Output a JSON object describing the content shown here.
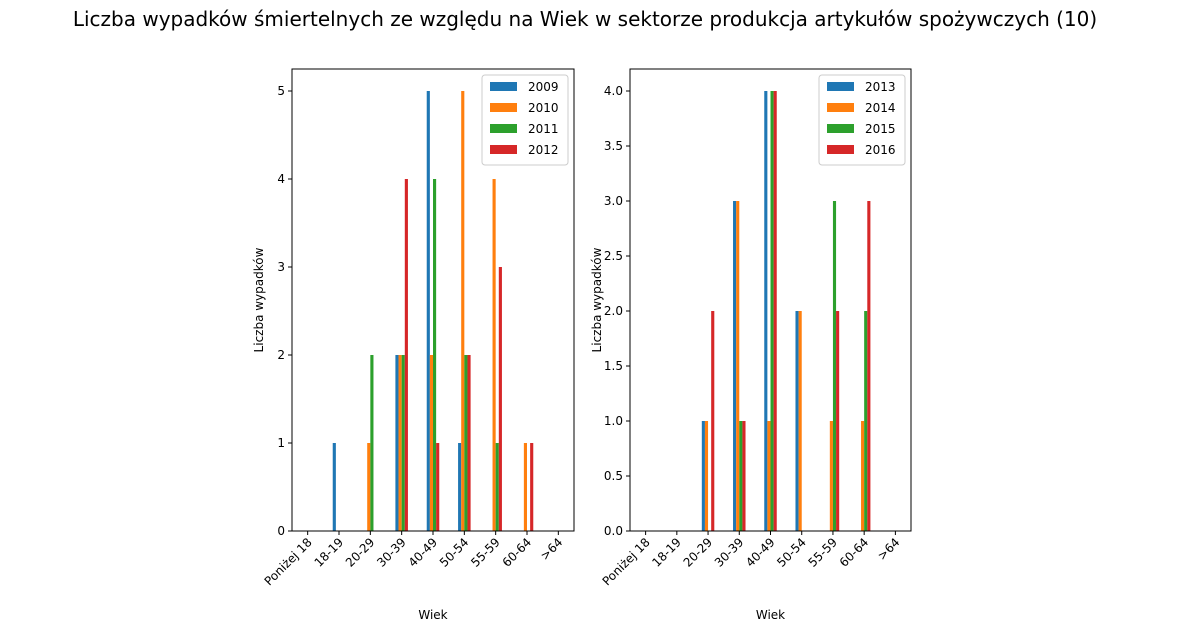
{
  "title": "Liczba wypadków śmiertelnych ze względu na Wiek w sektorze produkcja artykułów spożywczych  (10)",
  "chart_data": [
    {
      "type": "bar",
      "categories": [
        "Poniżej 18",
        "18-19",
        "20-29",
        "30-39",
        "40-49",
        "50-54",
        "55-59",
        "60-64",
        ">64"
      ],
      "series": [
        {
          "name": "2009",
          "color": "#1f77b4",
          "values": [
            0,
            1,
            0,
            2,
            5,
            1,
            0,
            0,
            0
          ]
        },
        {
          "name": "2010",
          "color": "#ff7f0e",
          "values": [
            0,
            0,
            1,
            2,
            2,
            5,
            4,
            1,
            0
          ]
        },
        {
          "name": "2011",
          "color": "#2ca02c",
          "values": [
            0,
            0,
            2,
            2,
            4,
            2,
            1,
            0,
            0
          ]
        },
        {
          "name": "2012",
          "color": "#d62728",
          "values": [
            0,
            0,
            0,
            4,
            1,
            2,
            3,
            1,
            0
          ]
        }
      ],
      "xlabel": "Wiek",
      "ylabel": "Liczba wypadków",
      "ylim": [
        0,
        5.25
      ],
      "yticks": [
        0,
        1,
        2,
        3,
        4,
        5
      ],
      "ytick_labels": [
        "0",
        "1",
        "2",
        "3",
        "4",
        "5"
      ],
      "legend": "top-right",
      "grid": false
    },
    {
      "type": "bar",
      "categories": [
        "Poniżej 18",
        "18-19",
        "20-29",
        "30-39",
        "40-49",
        "50-54",
        "55-59",
        "60-64",
        ">64"
      ],
      "series": [
        {
          "name": "2013",
          "color": "#1f77b4",
          "values": [
            0,
            0,
            1,
            3,
            4,
            2,
            0,
            0,
            0
          ]
        },
        {
          "name": "2014",
          "color": "#ff7f0e",
          "values": [
            0,
            0,
            1,
            3,
            1,
            2,
            1,
            1,
            0
          ]
        },
        {
          "name": "2015",
          "color": "#2ca02c",
          "values": [
            0,
            0,
            0,
            1,
            4,
            0,
            3,
            2,
            0
          ]
        },
        {
          "name": "2016",
          "color": "#d62728",
          "values": [
            0,
            0,
            2,
            1,
            4,
            0,
            2,
            3,
            0
          ]
        }
      ],
      "xlabel": "Wiek",
      "ylabel": "Liczba wypadków",
      "ylim": [
        0,
        4.2
      ],
      "yticks": [
        0,
        0.5,
        1,
        1.5,
        2,
        2.5,
        3,
        3.5,
        4
      ],
      "ytick_labels": [
        "0.0",
        "0.5",
        "1.0",
        "1.5",
        "2.0",
        "2.5",
        "3.0",
        "3.5",
        "4.0"
      ],
      "legend": "top-right",
      "grid": false
    }
  ]
}
